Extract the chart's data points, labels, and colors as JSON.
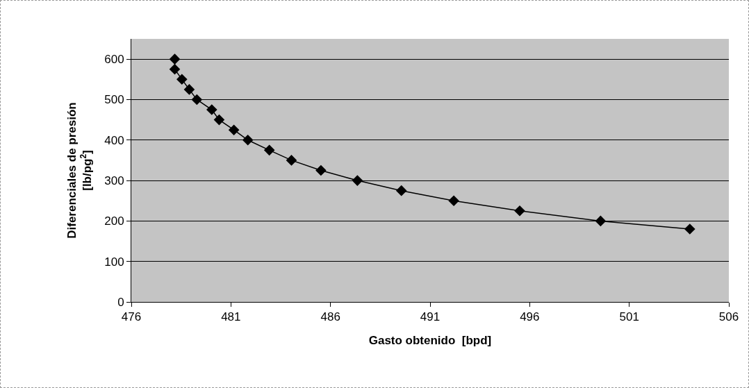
{
  "chart_data": {
    "type": "line",
    "xlabel": "Gasto obtenido  [bpd]",
    "ylabel": "Diferenciales de presión\n[lb/pg$^{2}$]",
    "x": [
      478.18,
      478.18,
      478.54,
      478.91,
      479.29,
      480.04,
      480.41,
      481.15,
      481.85,
      482.93,
      484.04,
      485.52,
      487.35,
      489.56,
      492.19,
      495.5,
      499.56,
      504.04
    ],
    "series": [
      {
        "color": "#000000",
        "values": [
          600,
          575,
          550,
          525,
          500,
          475,
          450,
          425,
          400,
          375,
          350,
          325,
          300,
          275,
          250,
          225,
          200,
          180
        ]
      }
    ],
    "xlim": [
      476,
      506
    ],
    "xticks": [
      476,
      481,
      486,
      491,
      496,
      501,
      506
    ],
    "ylim": [
      0,
      650
    ],
    "yticks": [
      0,
      100,
      200,
      300,
      400,
      500,
      600
    ],
    "grid": "y",
    "marker": "diamond",
    "line_style": "solid"
  }
}
